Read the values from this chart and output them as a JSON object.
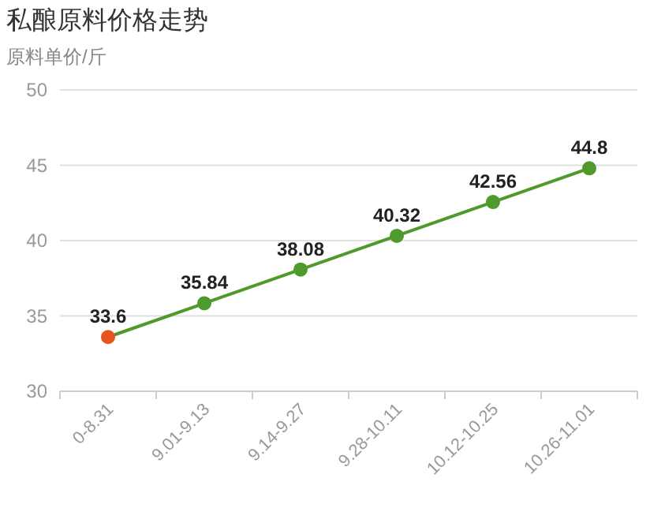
{
  "chart_data": {
    "type": "line",
    "title": "私酿原料价格走势",
    "subtitle": "原料单价/斤",
    "categories": [
      "0-8.31",
      "9.01-9.13",
      "9.14-9.27",
      "9.28-10.11",
      "10.12-10.25",
      "10.26-11.01"
    ],
    "series": [
      {
        "color": "#4f9a2c",
        "colors": [
          "#e8541e",
          "#4f9a2c",
          "#4f9a2c",
          "#4f9a2c",
          "#4f9a2c",
          "#4f9a2c"
        ],
        "values": [
          33.6,
          35.84,
          38.08,
          40.32,
          42.56,
          44.8
        ]
      }
    ],
    "ylim": [
      30,
      50
    ],
    "yticks": [
      30,
      35,
      40,
      45,
      50
    ],
    "grid": "y",
    "data_labels": true,
    "marker": "circle",
    "line_style": "solid"
  }
}
